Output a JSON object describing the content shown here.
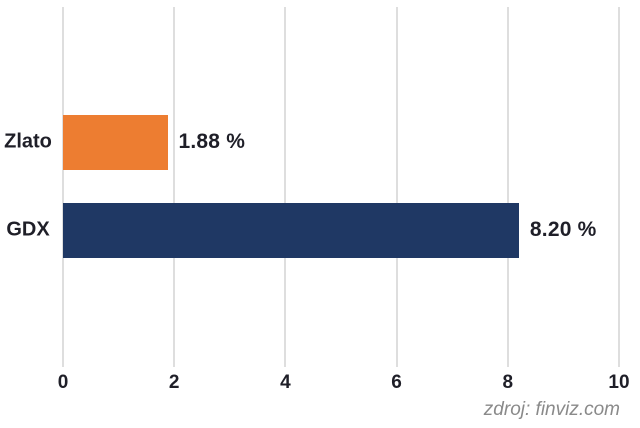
{
  "chart_data": {
    "type": "bar",
    "orientation": "horizontal",
    "categories": [
      "Zlato",
      "GDX"
    ],
    "values": [
      1.88,
      8.2
    ],
    "value_labels": [
      "1.88 %",
      "8.20 %"
    ],
    "bar_colors": [
      "#ED7D31",
      "#1F3864"
    ],
    "xlim": [
      0,
      10
    ],
    "xticks": [
      "0",
      "2",
      "4",
      "6",
      "8",
      "10"
    ],
    "xtick_values": [
      0,
      2,
      4,
      6,
      8,
      10
    ],
    "grid": true,
    "legend": "none",
    "title": "",
    "xlabel": "",
    "ylabel": "",
    "source": "zdroj: finviz.com"
  },
  "colors": {
    "background": "#FFFFFF",
    "gridline": "#DEDEDE",
    "text": "#1F1F28",
    "source_text": "#8A8A8A"
  }
}
